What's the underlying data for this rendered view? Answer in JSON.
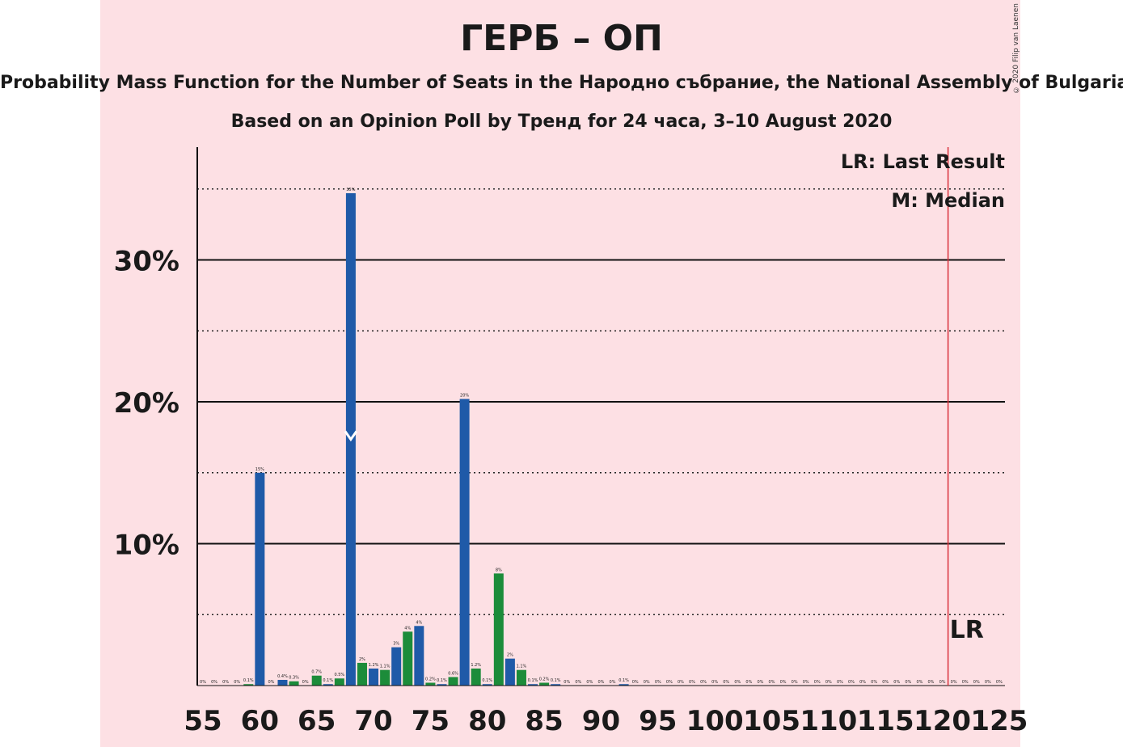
{
  "title": "ГЕРБ – ОП",
  "subtitle": "Probability Mass Function for the Number of Seats in the Народно събрание, the National Assembly of Bulgaria",
  "source": "Based on an Opinion Poll by Тренд for 24 часа, 3–10 August 2020",
  "copyright": "© 2020 Filip van Laenen",
  "legend": {
    "last_result": "LR: Last Result",
    "median": "M: Median"
  },
  "colors": {
    "background": "#fde0e4",
    "blue_bar": "#1f5aa8",
    "green_bar": "#1c8c3a",
    "last_result_line": "#d9323c"
  },
  "chart_data": {
    "type": "bar",
    "xlabel": "",
    "ylabel": "",
    "x_ticks": [
      55,
      60,
      65,
      70,
      75,
      80,
      85,
      90,
      95,
      100,
      105,
      110,
      115,
      120,
      125
    ],
    "y_ticks": [
      10,
      20,
      30
    ],
    "y_tick_labels": [
      "10%",
      "20%",
      "30%"
    ],
    "ylim": [
      0,
      38
    ],
    "xlim": [
      55,
      125
    ],
    "solid_grid": [
      10,
      20,
      30
    ],
    "dotted_grid": [
      5,
      15,
      25,
      35
    ],
    "last_result": 121,
    "last_result_label": "LR",
    "median": 68,
    "bars": [
      {
        "seats": 55,
        "value": 0,
        "label": "0%"
      },
      {
        "seats": 56,
        "value": 0,
        "label": "0%"
      },
      {
        "seats": 57,
        "value": 0,
        "label": "0%"
      },
      {
        "seats": 58,
        "value": 0,
        "label": "0%"
      },
      {
        "seats": 59,
        "value": 0.1,
        "label": "0.1%"
      },
      {
        "seats": 60,
        "value": 15,
        "label": "15%"
      },
      {
        "seats": 61,
        "value": 0,
        "label": "0%"
      },
      {
        "seats": 62,
        "value": 0.4,
        "label": "0.4%"
      },
      {
        "seats": 63,
        "value": 0.3,
        "label": "0.3%"
      },
      {
        "seats": 64,
        "value": 0,
        "label": "0%"
      },
      {
        "seats": 65,
        "value": 0.7,
        "label": "0.7%"
      },
      {
        "seats": 66,
        "value": 0.1,
        "label": "0.1%"
      },
      {
        "seats": 67,
        "value": 0.5,
        "label": "0.5%"
      },
      {
        "seats": 68,
        "value": 34.7,
        "label": "35%"
      },
      {
        "seats": 69,
        "value": 1.6,
        "label": "2%"
      },
      {
        "seats": 70,
        "value": 1.2,
        "label": "1.2%"
      },
      {
        "seats": 71,
        "value": 1.1,
        "label": "1.1%"
      },
      {
        "seats": 72,
        "value": 2.7,
        "label": "3%"
      },
      {
        "seats": 73,
        "value": 3.8,
        "label": "4%"
      },
      {
        "seats": 74,
        "value": 4.2,
        "label": "4%"
      },
      {
        "seats": 75,
        "value": 0.2,
        "label": "0.2%"
      },
      {
        "seats": 76,
        "value": 0.1,
        "label": "0.1%"
      },
      {
        "seats": 77,
        "value": 0.6,
        "label": "0.6%"
      },
      {
        "seats": 78,
        "value": 20.2,
        "label": "20%"
      },
      {
        "seats": 79,
        "value": 1.2,
        "label": "1.2%"
      },
      {
        "seats": 80,
        "value": 0.1,
        "label": "0.1%"
      },
      {
        "seats": 81,
        "value": 7.9,
        "label": "8%"
      },
      {
        "seats": 82,
        "value": 1.9,
        "label": "2%"
      },
      {
        "seats": 83,
        "value": 1.1,
        "label": "1.1%"
      },
      {
        "seats": 84,
        "value": 0.1,
        "label": "0.1%"
      },
      {
        "seats": 85,
        "value": 0.2,
        "label": "0.2%"
      },
      {
        "seats": 86,
        "value": 0.1,
        "label": "0.1%"
      },
      {
        "seats": 87,
        "value": 0,
        "label": "0%"
      },
      {
        "seats": 88,
        "value": 0,
        "label": "0%"
      },
      {
        "seats": 89,
        "value": 0,
        "label": "0%"
      },
      {
        "seats": 90,
        "value": 0,
        "label": "0%"
      },
      {
        "seats": 91,
        "value": 0,
        "label": "0%"
      },
      {
        "seats": 92,
        "value": 0.1,
        "label": "0.1%"
      },
      {
        "seats": 93,
        "value": 0,
        "label": "0%"
      },
      {
        "seats": 94,
        "value": 0,
        "label": "0%"
      },
      {
        "seats": 95,
        "value": 0,
        "label": "0%"
      },
      {
        "seats": 96,
        "value": 0,
        "label": "0%"
      },
      {
        "seats": 97,
        "value": 0,
        "label": "0%"
      },
      {
        "seats": 98,
        "value": 0,
        "label": "0%"
      },
      {
        "seats": 99,
        "value": 0,
        "label": "0%"
      },
      {
        "seats": 100,
        "value": 0,
        "label": "0%"
      },
      {
        "seats": 101,
        "value": 0,
        "label": "0%"
      },
      {
        "seats": 102,
        "value": 0,
        "label": "0%"
      },
      {
        "seats": 103,
        "value": 0,
        "label": "0%"
      },
      {
        "seats": 104,
        "value": 0,
        "label": "0%"
      },
      {
        "seats": 105,
        "value": 0,
        "label": "0%"
      },
      {
        "seats": 106,
        "value": 0,
        "label": "0%"
      },
      {
        "seats": 107,
        "value": 0,
        "label": "0%"
      },
      {
        "seats": 108,
        "value": 0,
        "label": "0%"
      },
      {
        "seats": 109,
        "value": 0,
        "label": "0%"
      },
      {
        "seats": 110,
        "value": 0,
        "label": "0%"
      },
      {
        "seats": 111,
        "value": 0,
        "label": "0%"
      },
      {
        "seats": 112,
        "value": 0,
        "label": "0%"
      },
      {
        "seats": 113,
        "value": 0,
        "label": "0%"
      },
      {
        "seats": 114,
        "value": 0,
        "label": "0%"
      },
      {
        "seats": 115,
        "value": 0,
        "label": "0%"
      },
      {
        "seats": 116,
        "value": 0,
        "label": "0%"
      },
      {
        "seats": 117,
        "value": 0,
        "label": "0%"
      },
      {
        "seats": 118,
        "value": 0,
        "label": "0%"
      },
      {
        "seats": 119,
        "value": 0,
        "label": "0%"
      },
      {
        "seats": 120,
        "value": 0,
        "label": "0%"
      },
      {
        "seats": 121,
        "value": 0,
        "label": "0%"
      },
      {
        "seats": 122,
        "value": 0,
        "label": "0%"
      },
      {
        "seats": 123,
        "value": 0,
        "label": "0%"
      },
      {
        "seats": 124,
        "value": 0,
        "label": "0%"
      },
      {
        "seats": 125,
        "value": 0,
        "label": "0%"
      }
    ]
  }
}
